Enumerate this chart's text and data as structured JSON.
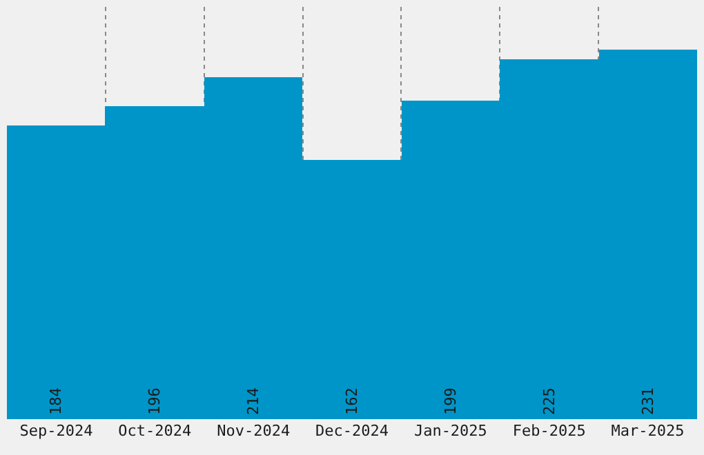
{
  "chart_data": {
    "type": "bar",
    "categories": [
      "Sep-2024",
      "Oct-2024",
      "Nov-2024",
      "Dec-2024",
      "Jan-2025",
      "Feb-2025",
      "Mar-2025"
    ],
    "values": [
      184,
      196,
      214,
      162,
      199,
      225,
      231
    ],
    "color": "#0095c8",
    "data_labels": true,
    "tick_labels": "x",
    "grid": "x"
  }
}
